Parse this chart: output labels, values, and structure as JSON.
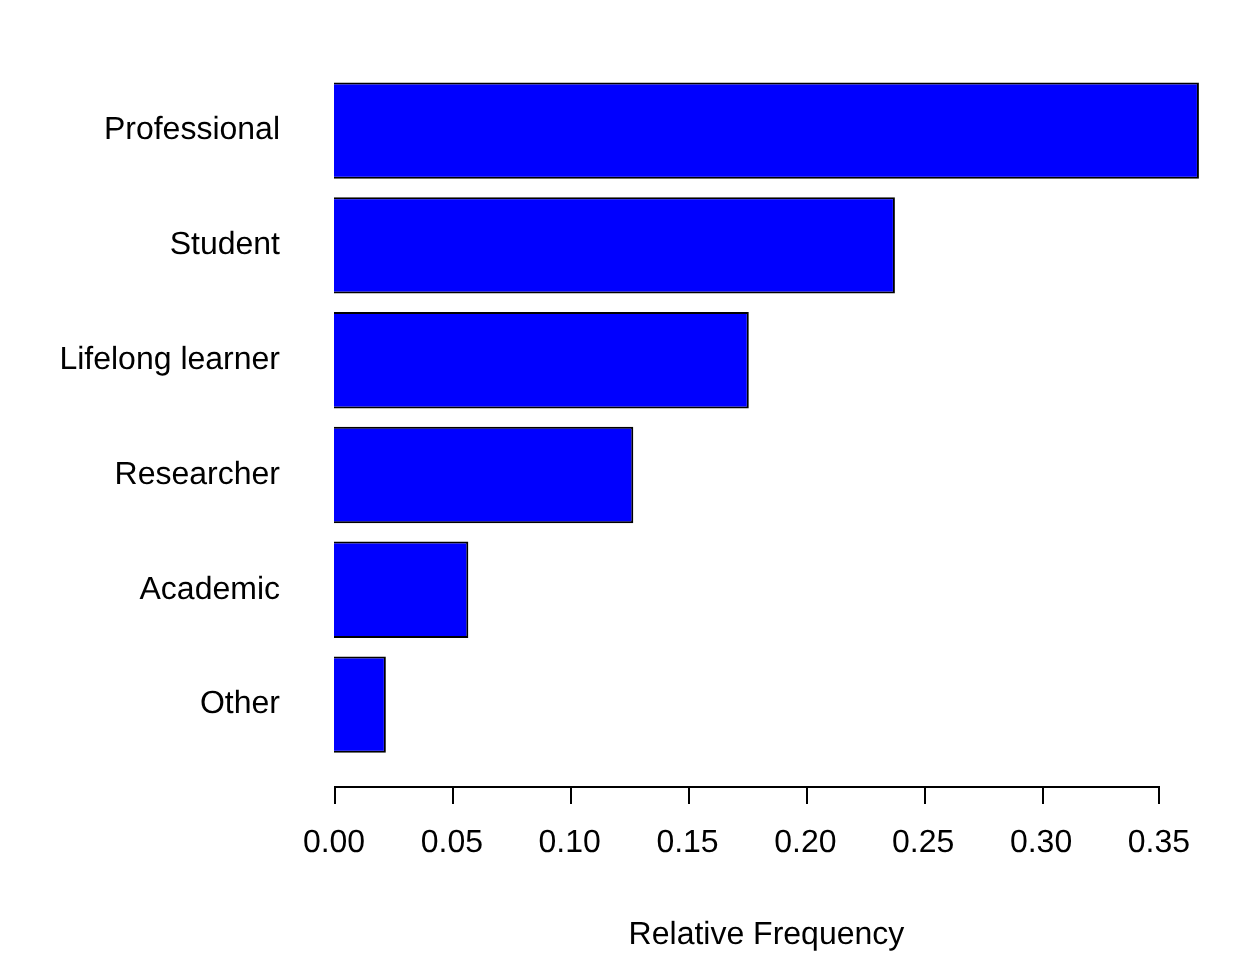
{
  "chart_data": {
    "type": "bar",
    "orientation": "horizontal",
    "xlabel": "Relative Frequency",
    "categories": [
      "Professional",
      "Student",
      "Lifelong learner",
      "Researcher",
      "Academic",
      "Other"
    ],
    "values": [
      0.367,
      0.238,
      0.176,
      0.127,
      0.057,
      0.022
    ],
    "color": "#0000ff",
    "xlim": [
      0,
      0.367
    ],
    "xticks": [
      {
        "value": 0,
        "label": "0.00"
      },
      {
        "value": 0.05,
        "label": "0.05"
      },
      {
        "value": 0.1,
        "label": "0.10"
      },
      {
        "value": 0.15,
        "label": "0.15"
      },
      {
        "value": 0.2,
        "label": "0.20"
      },
      {
        "value": 0.25,
        "label": "0.25"
      },
      {
        "value": 0.3,
        "label": "0.30"
      },
      {
        "value": 0.35,
        "label": "0.35"
      }
    ],
    "grid": false,
    "legend": false
  }
}
